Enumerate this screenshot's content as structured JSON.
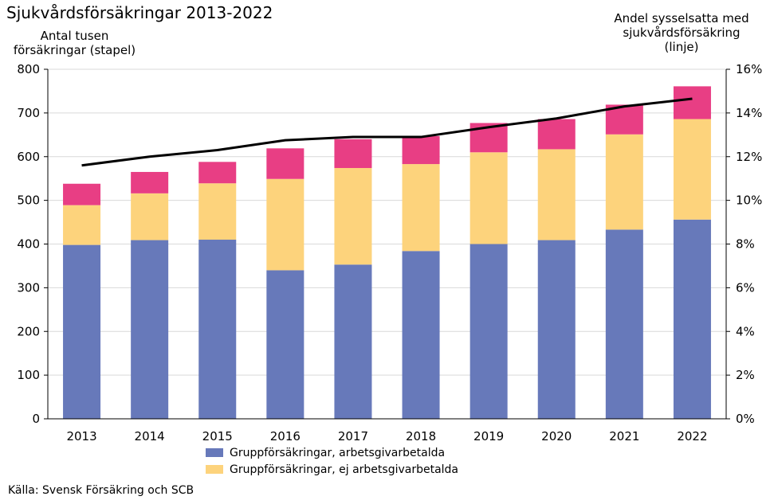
{
  "chart_data": {
    "type": "bar",
    "stacked": true,
    "title": "Sjukvårdsförsäkringar 2013-2022",
    "ylabel_left": [
      "Antal tusen",
      "försäkringar (stapel)"
    ],
    "ylabel_right": [
      "Andel sysselsatta med",
      "sjukvårdsförsäkring",
      "(linje)"
    ],
    "categories": [
      "2013",
      "2014",
      "2015",
      "2016",
      "2017",
      "2018",
      "2019",
      "2020",
      "2021",
      "2022"
    ],
    "ylim_left": [
      0,
      800
    ],
    "yticks_left": [
      "0",
      "100",
      "200",
      "300",
      "400",
      "500",
      "600",
      "700",
      "800"
    ],
    "ylim_right": [
      0,
      16
    ],
    "yticks_right": [
      "0%",
      "2%",
      "4%",
      "6%",
      "8%",
      "10%",
      "12%",
      "14%",
      "16%"
    ],
    "series": [
      {
        "name": "Gruppförsäkringar, arbetsgivarbetalda",
        "color": "#6779BA",
        "values": [
          398,
          409,
          410,
          340,
          353,
          384,
          400,
          409,
          433,
          456
        ]
      },
      {
        "name": "Gruppförsäkringar, ej arbetsgivarbetalda",
        "color": "#FDD37C",
        "values": [
          91,
          107,
          129,
          209,
          221,
          199,
          210,
          208,
          218,
          230
        ]
      },
      {
        "color": "#E83E84",
        "values": [
          49,
          49,
          49,
          70,
          66,
          64,
          67,
          69,
          68,
          75
        ]
      }
    ],
    "line": {
      "color": "#000000",
      "axis": "right",
      "values": [
        11.6,
        12.0,
        12.3,
        12.75,
        12.9,
        12.9,
        13.35,
        13.75,
        14.3,
        14.65
      ]
    },
    "grid": true,
    "legend_position": "bottom"
  },
  "source": "Källa: Svensk Försäkring och SCB"
}
